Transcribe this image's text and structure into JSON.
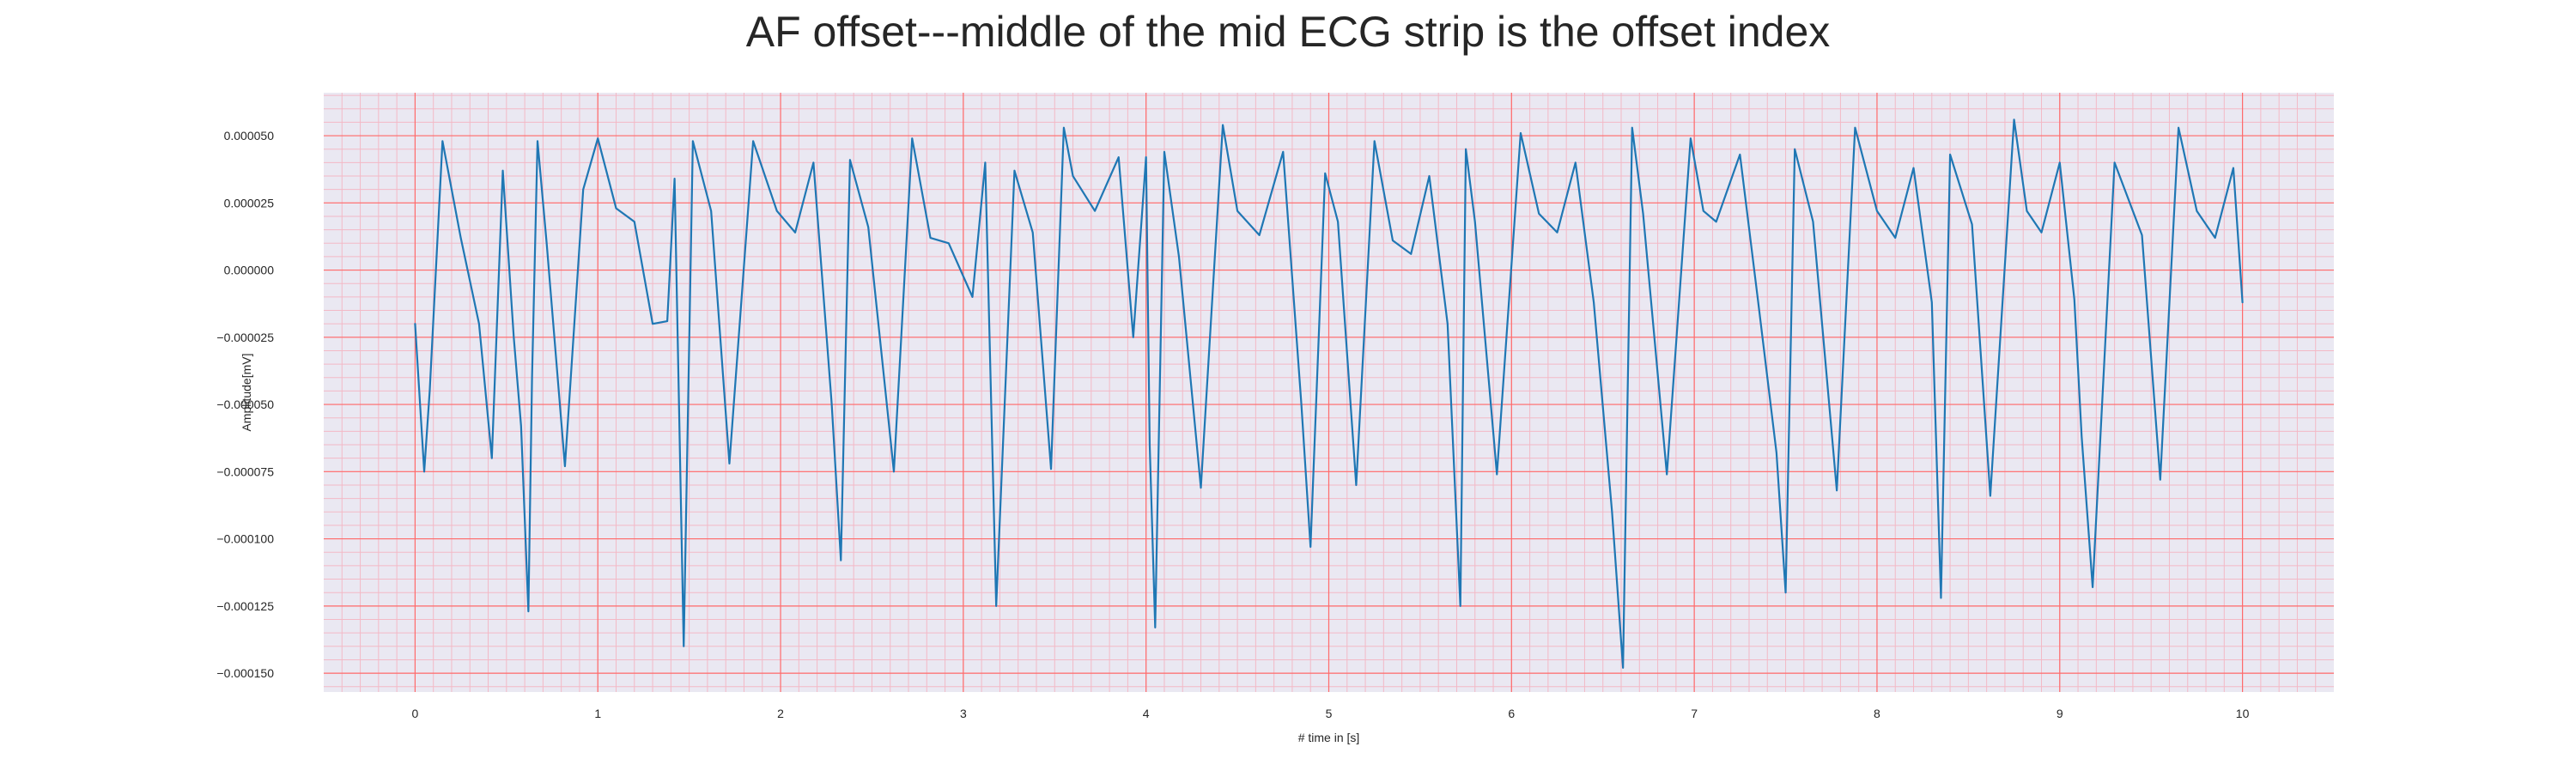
{
  "chart_data": {
    "type": "line",
    "title": "AF offset---middle of the mid ECG strip is the offset index",
    "xlabel": "# time in [s]",
    "ylabel": "Amplitude[mV]",
    "xlim": [
      -0.5,
      10.5
    ],
    "ylim": [
      -0.000157,
      6.6e-05
    ],
    "x_ticks": [
      0,
      1,
      2,
      3,
      4,
      5,
      6,
      7,
      8,
      9,
      10
    ],
    "x_tick_labels": [
      "0",
      "1",
      "2",
      "3",
      "4",
      "5",
      "6",
      "7",
      "8",
      "9",
      "10"
    ],
    "y_ticks": [
      5e-05,
      2.5e-05,
      0.0,
      -2.5e-05,
      -5e-05,
      -7.5e-05,
      -0.0001,
      -0.000125,
      -0.00015
    ],
    "y_tick_labels": [
      "0.000050",
      "0.000025",
      "0.000000",
      "−0.000025",
      "−0.000050",
      "−0.000075",
      "−0.000100",
      "−0.000125",
      "−0.000150"
    ],
    "grid": {
      "major": true,
      "minor": true,
      "major_color": "#ff6b6b",
      "minor_color": "#f3b9c6",
      "background": "#eae8f2"
    },
    "series_color": "#1f77b4",
    "beat_times": [
      0.0,
      1.0,
      2.0,
      3.0,
      4.0,
      5.0,
      6.0,
      7.0,
      8.0,
      9.0,
      10.0
    ],
    "series": [
      {
        "x": [
          0.0,
          0.05,
          0.08,
          0.15,
          0.25,
          0.35,
          0.42,
          0.48,
          0.54,
          0.58,
          0.62,
          0.64,
          0.67,
          0.72,
          0.82,
          0.92,
          1.0,
          1.1,
          1.2,
          1.3,
          1.38,
          1.42,
          1.47,
          1.52,
          1.62,
          1.72,
          1.85,
          1.98,
          2.08,
          2.18,
          2.28,
          2.33,
          2.38,
          2.48,
          2.62,
          2.72,
          2.82,
          2.92,
          3.05,
          3.12,
          3.18,
          3.28,
          3.38,
          3.48,
          3.55,
          3.6,
          3.72,
          3.85,
          3.93,
          4.0,
          4.02,
          4.05,
          4.1,
          4.18,
          4.3,
          4.42,
          4.5,
          4.62,
          4.75,
          4.85,
          4.9,
          4.98,
          5.05,
          5.15,
          5.25,
          5.35,
          5.45,
          5.55,
          5.65,
          5.72,
          5.75,
          5.8,
          5.92,
          6.05,
          6.15,
          6.25,
          6.35,
          6.45,
          6.55,
          6.61,
          6.66,
          6.72,
          6.85,
          6.98,
          7.05,
          7.12,
          7.25,
          7.35,
          7.45,
          7.5,
          7.55,
          7.65,
          7.78,
          7.88,
          8.0,
          8.1,
          8.2,
          8.3,
          8.35,
          8.4,
          8.52,
          8.62,
          8.75,
          8.82,
          8.9,
          9.0,
          9.08,
          9.12,
          9.18,
          9.3,
          9.45,
          9.55,
          9.65,
          9.75,
          9.85,
          9.95,
          10.0
        ],
        "y": [
          -2e-05,
          -7.5e-05,
          -4.5e-05,
          4.8e-05,
          1.2e-05,
          -2e-05,
          -7e-05,
          3.7e-05,
          -2.5e-05,
          -5.8e-05,
          -0.000127,
          -4e-05,
          4.8e-05,
          1e-05,
          -7.3e-05,
          3e-05,
          4.9e-05,
          2.3e-05,
          1.8e-05,
          -2e-05,
          -1.9e-05,
          3.4e-05,
          -0.00014,
          4.8e-05,
          2.2e-05,
          -7.2e-05,
          4.8e-05,
          2.2e-05,
          1.4e-05,
          4e-05,
          -5e-05,
          -0.000108,
          4.1e-05,
          1.6e-05,
          -7.5e-05,
          4.9e-05,
          1.2e-05,
          1e-05,
          -1e-05,
          4e-05,
          -0.000125,
          3.7e-05,
          1.4e-05,
          -7.4e-05,
          5.3e-05,
          3.5e-05,
          2.2e-05,
          4.2e-05,
          -2.5e-05,
          4.2e-05,
          -6.5e-05,
          -0.000133,
          4.4e-05,
          5e-06,
          -8.1e-05,
          5.4e-05,
          2.2e-05,
          1.3e-05,
          4.4e-05,
          -5e-05,
          -0.000103,
          3.6e-05,
          1.8e-05,
          -8e-05,
          4.8e-05,
          1.1e-05,
          6e-06,
          3.5e-05,
          -2e-05,
          -0.000125,
          4.5e-05,
          1.8e-05,
          -7.6e-05,
          5.1e-05,
          2.1e-05,
          1.4e-05,
          4e-05,
          -1.2e-05,
          -9e-05,
          -0.000148,
          5.3e-05,
          2.1e-05,
          -7.6e-05,
          4.9e-05,
          2.2e-05,
          1.8e-05,
          4.3e-05,
          -1.2e-05,
          -6.8e-05,
          -0.00012,
          4.5e-05,
          1.8e-05,
          -8.2e-05,
          5.3e-05,
          2.2e-05,
          1.2e-05,
          3.8e-05,
          -1.2e-05,
          -0.000122,
          4.3e-05,
          1.7e-05,
          -8.4e-05,
          5.6e-05,
          2.2e-05,
          1.4e-05,
          4e-05,
          -1.1e-05,
          -6.2e-05,
          -0.000118,
          4e-05,
          1.3e-05,
          -7.8e-05,
          5.3e-05,
          2.2e-05,
          1.2e-05,
          3.8e-05,
          -1.2e-05
        ]
      }
    ]
  }
}
